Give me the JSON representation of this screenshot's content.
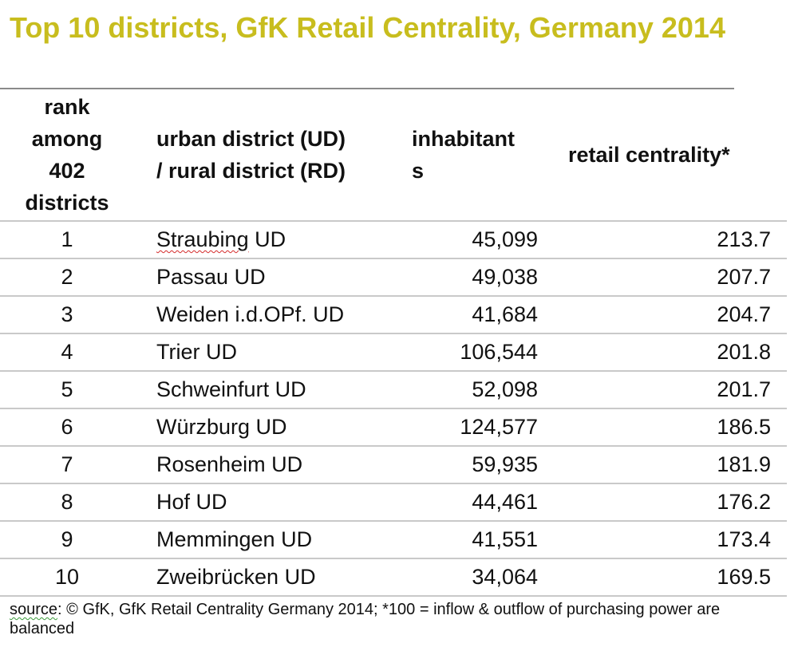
{
  "title": "Top 10 districts, GfK Retail Centrality, Germany 2014",
  "headers": {
    "rank": [
      "rank",
      "among",
      "402",
      "districts"
    ],
    "district": [
      "urban district (UD)",
      "/ rural district (RD)"
    ],
    "inhabitants": [
      "inhabitant",
      "s"
    ],
    "centrality": "retail centrality*"
  },
  "rows": [
    {
      "rank": "1",
      "name": "Straubing",
      "suffix": " UD",
      "inhabitants": "45,099",
      "centrality": "213.7"
    },
    {
      "rank": "2",
      "name": "Passau",
      "suffix": " UD",
      "inhabitants": "49,038",
      "centrality": "207.7"
    },
    {
      "rank": "3",
      "name": "Weiden i.d.OPf.",
      "suffix": " UD",
      "inhabitants": "41,684",
      "centrality": "204.7"
    },
    {
      "rank": "4",
      "name": "Trier",
      "suffix": " UD",
      "inhabitants": "106,544",
      "centrality": "201.8"
    },
    {
      "rank": "5",
      "name": "Schweinfurt",
      "suffix": " UD",
      "inhabitants": "52,098",
      "centrality": "201.7"
    },
    {
      "rank": "6",
      "name": "Würzburg",
      "suffix": " UD",
      "inhabitants": "124,577",
      "centrality": "186.5"
    },
    {
      "rank": "7",
      "name": "Rosenheim",
      "suffix": " UD",
      "inhabitants": "59,935",
      "centrality": "181.9"
    },
    {
      "rank": "8",
      "name": "Hof",
      "suffix": " UD",
      "inhabitants": "44,461",
      "centrality": "176.2"
    },
    {
      "rank": "9",
      "name": "Memmingen",
      "suffix": " UD",
      "inhabitants": "41,551",
      "centrality": "173.4"
    },
    {
      "rank": "10",
      "name": "Zweibrücken",
      "suffix": " UD",
      "inhabitants": "34,064",
      "centrality": "169.5"
    }
  ],
  "source": {
    "label": "source",
    "text": ": © GfK, GfK Retail Centrality Germany 2014; *100 = inflow & outflow of purchasing power are balanced"
  },
  "colors": {
    "title": "#c8bd1e",
    "rule": "#c9c9c9"
  }
}
